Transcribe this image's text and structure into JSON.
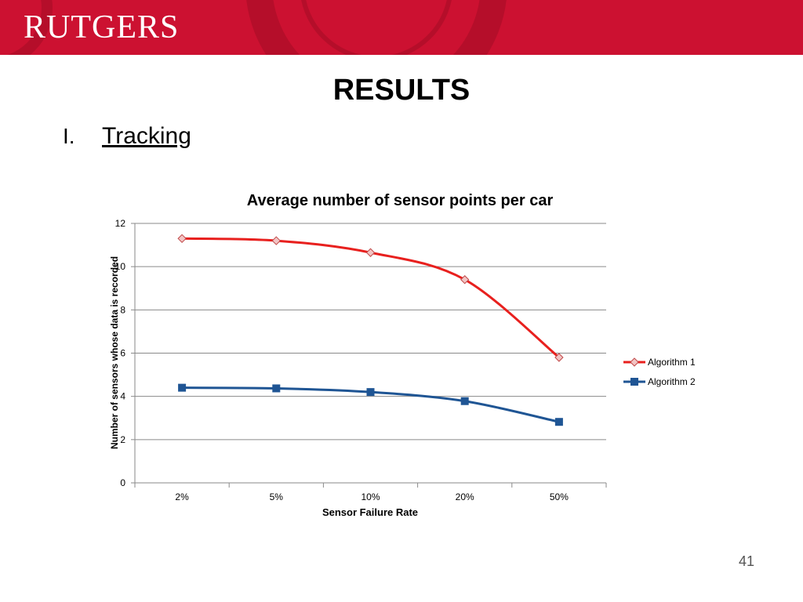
{
  "banner": {
    "logo_text": "RUTGERS",
    "color": "#cc1131"
  },
  "slide": {
    "title": "RESULTS",
    "outline_number": "I.",
    "outline_text": "Tracking",
    "page_number": "41"
  },
  "chart_data": {
    "type": "line",
    "title": "Average number of sensor points per car",
    "xlabel": "Sensor Failure Rate",
    "ylabel": "Number of sensors whose data is recorded",
    "categories": [
      "2%",
      "5%",
      "10%",
      "20%",
      "50%"
    ],
    "ylim": [
      0,
      12
    ],
    "yticks": [
      "0",
      "2",
      "4",
      "6",
      "8",
      "10",
      "12"
    ],
    "grid": true,
    "legend_position": "right",
    "series": [
      {
        "name": "Algorithm 1",
        "values": [
          11.3,
          11.2,
          10.65,
          9.4,
          5.8
        ],
        "color": "#e8201e",
        "marker": "diamond"
      },
      {
        "name": "Algorithm 2",
        "values": [
          4.4,
          4.37,
          4.2,
          3.78,
          2.82
        ],
        "color": "#1f5594",
        "marker": "square"
      }
    ]
  }
}
